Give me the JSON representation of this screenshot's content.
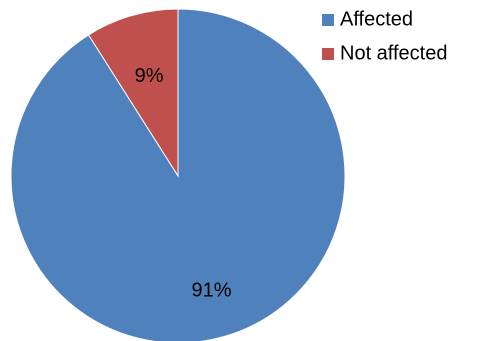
{
  "chart_data": {
    "type": "pie",
    "title": "",
    "legend_position": "top-right",
    "slices": [
      {
        "label": "Not affected",
        "value": 9,
        "display": "9%",
        "color": "#c0504d"
      },
      {
        "label": "Affected",
        "value": 91,
        "display": "91%",
        "color": "#4f81bd"
      }
    ],
    "legend": [
      {
        "label": "Affected",
        "color": "#4f81bd"
      },
      {
        "label": "Not affected",
        "color": "#c0504d"
      }
    ]
  }
}
